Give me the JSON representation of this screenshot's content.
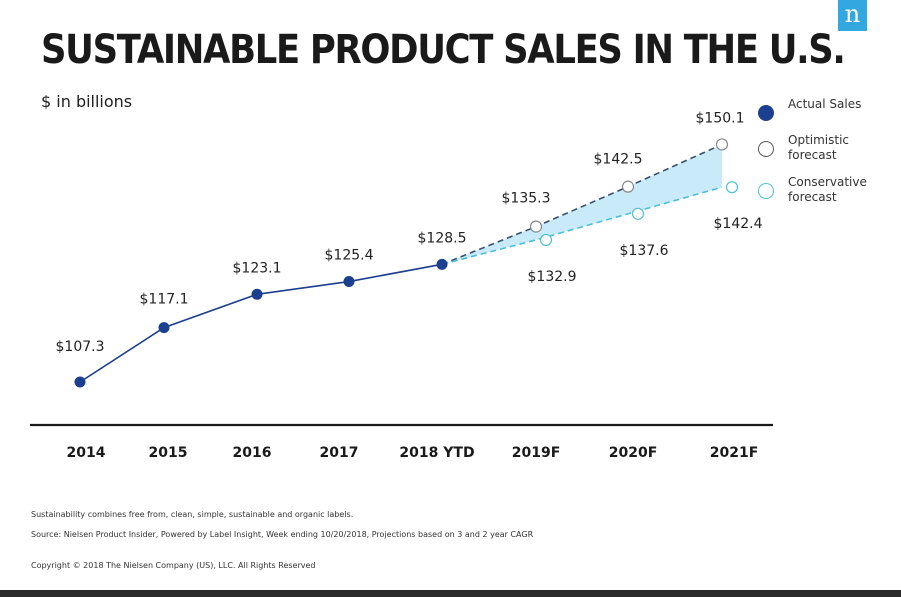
{
  "logo_letter": "n",
  "title": "SUSTAINABLE PRODUCT SALES IN THE U.S.",
  "subtitle": "$ in billions",
  "legend": {
    "actual": "Actual Sales",
    "optimistic": "Optimistic forecast",
    "conservative": "Conservative forecast"
  },
  "chart_data": {
    "type": "line",
    "title": "SUSTAINABLE PRODUCT SALES IN THE U.S.",
    "ylabel": "$ in billions",
    "xlabel": "",
    "categories": [
      "2014",
      "2015",
      "2016",
      "2017",
      "2018 YTD",
      "2019F",
      "2020F",
      "2021F"
    ],
    "ylim": [
      100,
      155
    ],
    "series": [
      {
        "name": "Actual Sales",
        "values": [
          107.3,
          117.1,
          123.1,
          125.4,
          128.5,
          null,
          null,
          null
        ],
        "labels": [
          "$107.3",
          "$117.1",
          "$123.1",
          "$125.4",
          "$128.5",
          null,
          null,
          null
        ]
      },
      {
        "name": "Optimistic forecast",
        "values": [
          null,
          null,
          null,
          null,
          128.5,
          135.3,
          142.5,
          150.1
        ],
        "labels": [
          null,
          null,
          null,
          null,
          null,
          "$135.3",
          "$142.5",
          "$150.1"
        ]
      },
      {
        "name": "Conservative forecast",
        "values": [
          null,
          null,
          null,
          null,
          128.5,
          132.9,
          137.6,
          142.4
        ],
        "labels": [
          null,
          null,
          null,
          null,
          null,
          "$132.9",
          "$137.6",
          "$142.4"
        ]
      }
    ],
    "colors": {
      "actual": "#1d3f8f",
      "optimistic": "#37506d",
      "conservative": "#4cc0d6",
      "band": "#bfe6f7",
      "axis": "#1a1a1a"
    }
  },
  "footnotes": {
    "note": "Sustainability combines free from, clean, simple, sustainable and organic labels.",
    "source": "Source: Nielsen Product Insider, Powered by Label Insight, Week ending 10/20/2018, Projections based on 3 and 2 year CAGR",
    "copyright": "Copyright © 2018 The Nielsen Company (US), LLC. All Rights Reserved"
  }
}
